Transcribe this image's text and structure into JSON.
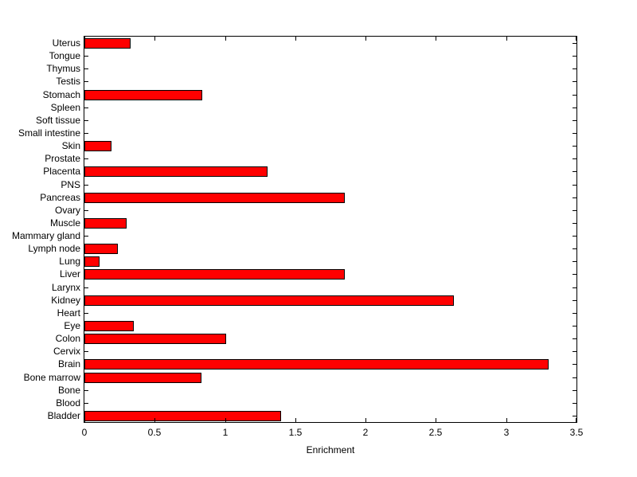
{
  "chart_data": {
    "type": "bar",
    "orientation": "horizontal",
    "title": "",
    "xlabel": "Enrichment",
    "ylabel": "",
    "xlim": [
      0,
      3.5
    ],
    "x_ticks": [
      0,
      0.5,
      1,
      1.5,
      2,
      2.5,
      3,
      3.5
    ],
    "x_tick_labels": [
      "0",
      "0.5",
      "1",
      "1.5",
      "2",
      "2.5",
      "3",
      "3.5"
    ],
    "grid": false,
    "legend": false,
    "bar_color": "#FF0000",
    "bar_edge_color": "#000000",
    "categories": [
      "Uterus",
      "Tongue",
      "Thymus",
      "Testis",
      "Stomach",
      "Spleen",
      "Soft tissue",
      "Small intestine",
      "Skin",
      "Prostate",
      "Placenta",
      "PNS",
      "Pancreas",
      "Ovary",
      "Muscle",
      "Mammary gland",
      "Lymph node",
      "Lung",
      "Liver",
      "Larynx",
      "Kidney",
      "Heart",
      "Eye",
      "Colon",
      "Cervix",
      "Brain",
      "Bone marrow",
      "Bone",
      "Blood",
      "Bladder"
    ],
    "values": [
      0.33,
      0,
      0,
      0,
      0.84,
      0,
      0,
      0,
      0.19,
      0,
      1.3,
      0,
      1.85,
      0,
      0.3,
      0,
      0.24,
      0.11,
      1.85,
      0,
      2.63,
      0,
      0.35,
      1.01,
      0,
      3.3,
      0.83,
      0,
      0,
      1.4
    ]
  }
}
